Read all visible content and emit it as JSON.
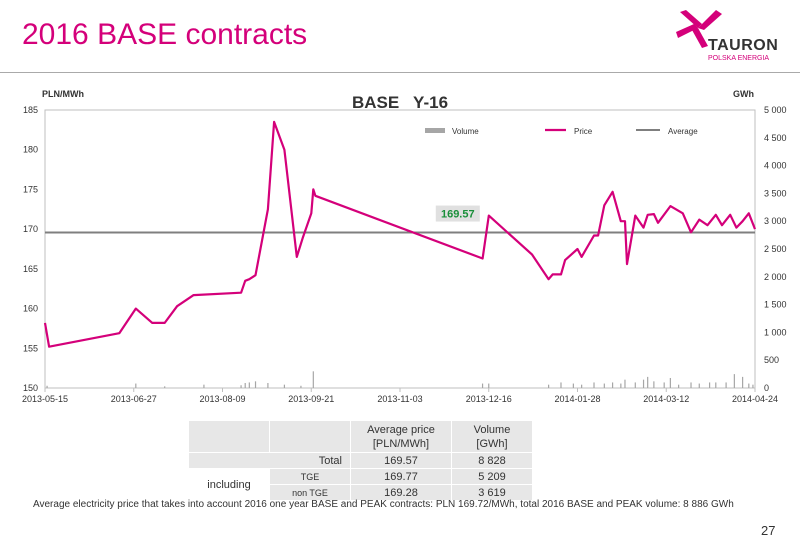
{
  "slide": {
    "title": "2016 BASE contracts",
    "page_number": "27",
    "footnote": "Average electricity price that takes into account 2016 one year BASE and PEAK contracts: PLN 169.72/MWh, total 2016 BASE and PEAK volume: 8 886 GWh"
  },
  "logo": {
    "word": "TAURON",
    "tagline": "POLSKA ENERGIA",
    "icon": "tauron-pinwheel-icon",
    "color": "#d4007a"
  },
  "colors": {
    "accent": "#d4007a",
    "volume": "#a6a6a6",
    "average": "#7f7f7f",
    "average_label": "#1a8f3a"
  },
  "chart_data": {
    "type": "line",
    "title": "BASE   Y-16",
    "ylabel_left": "PLN/MWh",
    "ylabel_right": "GWh",
    "ylim": [
      150,
      185
    ],
    "ylim_right": [
      0,
      5000
    ],
    "yticks_left": [
      "150",
      "155",
      "160",
      "165",
      "170",
      "175",
      "180",
      "185"
    ],
    "yticks_right": [
      "0",
      "500",
      "1 000",
      "1 500",
      "2 000",
      "2 500",
      "3 000",
      "3 500",
      "4 000",
      "4 500",
      "5 000"
    ],
    "xticks": [
      "2013-05-15",
      "2013-06-27",
      "2013-08-09",
      "2013-09-21",
      "2013-11-03",
      "2013-12-16",
      "2014-01-28",
      "2014-03-12",
      "2014-04-24"
    ],
    "xlim": [
      "2013-05-15",
      "2014-04-24"
    ],
    "legend": [
      "Volume",
      "Price",
      "Average"
    ],
    "legend_position": "top",
    "grid": false,
    "average": {
      "value": 169.57,
      "label": "169.57"
    },
    "series": [
      {
        "name": "Price",
        "type": "line",
        "points": [
          [
            "2013-05-15",
            158.2
          ],
          [
            "2013-05-17",
            155.2
          ],
          [
            "2013-06-20",
            156.9
          ],
          [
            "2013-06-28",
            160.0
          ],
          [
            "2013-07-06",
            158.2
          ],
          [
            "2013-07-12",
            158.2
          ],
          [
            "2013-07-18",
            160.3
          ],
          [
            "2013-07-26",
            161.7
          ],
          [
            "2013-08-18",
            162.0
          ],
          [
            "2013-08-20",
            163.5
          ],
          [
            "2013-08-22",
            163.7
          ],
          [
            "2013-08-25",
            164.2
          ],
          [
            "2013-08-31",
            172.5
          ],
          [
            "2013-09-03",
            183.5
          ],
          [
            "2013-09-08",
            180.0
          ],
          [
            "2013-09-14",
            166.5
          ],
          [
            "2013-09-17",
            169.0
          ],
          [
            "2013-09-21",
            172.0
          ],
          [
            "2013-09-22",
            175.0
          ],
          [
            "2013-09-23",
            174.2
          ],
          [
            "2013-12-13",
            166.3
          ],
          [
            "2013-12-16",
            171.7
          ],
          [
            "2014-01-06",
            166.8
          ],
          [
            "2014-01-14",
            163.7
          ],
          [
            "2014-01-16",
            164.3
          ],
          [
            "2014-01-20",
            164.3
          ],
          [
            "2014-01-22",
            166.1
          ],
          [
            "2014-01-28",
            167.5
          ],
          [
            "2014-01-30",
            166.5
          ],
          [
            "2014-02-05",
            169.2
          ],
          [
            "2014-02-07",
            169.2
          ],
          [
            "2014-02-10",
            173.0
          ],
          [
            "2014-02-14",
            174.7
          ],
          [
            "2014-02-18",
            171.0
          ],
          [
            "2014-02-20",
            171.0
          ],
          [
            "2014-02-21",
            165.6
          ],
          [
            "2014-02-25",
            171.7
          ],
          [
            "2014-03-01",
            170.2
          ],
          [
            "2014-03-03",
            171.8
          ],
          [
            "2014-03-06",
            171.9
          ],
          [
            "2014-03-08",
            170.8
          ],
          [
            "2014-03-14",
            172.9
          ],
          [
            "2014-03-20",
            172.0
          ],
          [
            "2014-03-24",
            169.6
          ],
          [
            "2014-03-28",
            171.2
          ],
          [
            "2014-04-01",
            170.5
          ],
          [
            "2014-04-05",
            171.8
          ],
          [
            "2014-04-08",
            170.5
          ],
          [
            "2014-04-12",
            171.8
          ],
          [
            "2014-04-15",
            170.2
          ],
          [
            "2014-04-18",
            171.0
          ],
          [
            "2014-04-21",
            172.0
          ],
          [
            "2014-04-24",
            170.0
          ]
        ]
      },
      {
        "name": "Volume",
        "type": "bar",
        "axis": "right",
        "points": [
          [
            "2013-05-16",
            40
          ],
          [
            "2013-06-28",
            80
          ],
          [
            "2013-07-12",
            30
          ],
          [
            "2013-07-31",
            60
          ],
          [
            "2013-08-18",
            50
          ],
          [
            "2013-08-20",
            90
          ],
          [
            "2013-08-22",
            100
          ],
          [
            "2013-08-25",
            120
          ],
          [
            "2013-08-31",
            90
          ],
          [
            "2013-09-08",
            60
          ],
          [
            "2013-09-16",
            40
          ],
          [
            "2013-09-22",
            300
          ],
          [
            "2013-12-13",
            80
          ],
          [
            "2013-12-16",
            80
          ],
          [
            "2014-01-14",
            60
          ],
          [
            "2014-01-20",
            100
          ],
          [
            "2014-01-26",
            80
          ],
          [
            "2014-01-30",
            60
          ],
          [
            "2014-02-05",
            100
          ],
          [
            "2014-02-10",
            80
          ],
          [
            "2014-02-14",
            100
          ],
          [
            "2014-02-18",
            80
          ],
          [
            "2014-02-20",
            150
          ],
          [
            "2014-02-25",
            100
          ],
          [
            "2014-03-01",
            150
          ],
          [
            "2014-03-03",
            200
          ],
          [
            "2014-03-06",
            120
          ],
          [
            "2014-03-11",
            100
          ],
          [
            "2014-03-14",
            180
          ],
          [
            "2014-03-18",
            60
          ],
          [
            "2014-03-24",
            100
          ],
          [
            "2014-03-28",
            80
          ],
          [
            "2014-04-02",
            100
          ],
          [
            "2014-04-05",
            100
          ],
          [
            "2014-04-10",
            100
          ],
          [
            "2014-04-14",
            250
          ],
          [
            "2014-04-18",
            200
          ],
          [
            "2014-04-21",
            80
          ],
          [
            "2014-04-23",
            60
          ]
        ]
      }
    ]
  },
  "summary_table": {
    "headers": {
      "price": "Average price\n[PLN/MWh]",
      "volume": "Volume\n[GWh]"
    },
    "rows": [
      {
        "label": "Total",
        "sublabel": "",
        "price": "169.57",
        "volume": "8 828"
      },
      {
        "label": "including",
        "sublabel": "TGE",
        "price": "169.77",
        "volume": "5 209"
      },
      {
        "label": "",
        "sublabel": "non TGE",
        "price": "169.28",
        "volume": "3 619"
      }
    ]
  }
}
